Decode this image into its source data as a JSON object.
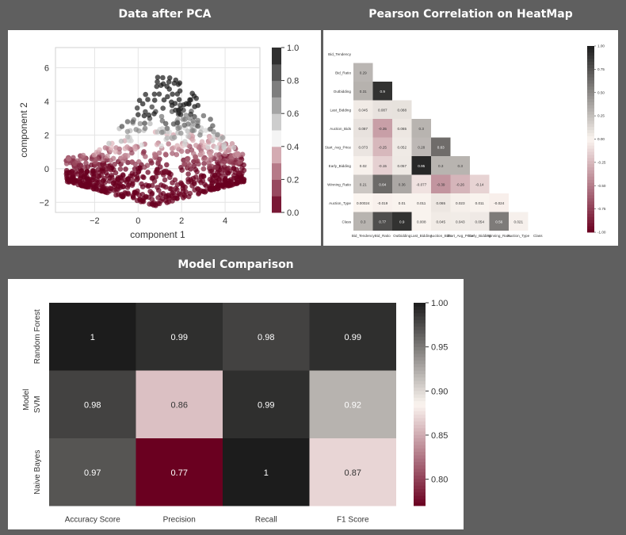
{
  "panels": {
    "pca": {
      "title": "Data after PCA"
    },
    "corr": {
      "title": "Pearson Correlation on HeatMap"
    },
    "model": {
      "title": "Model Comparison"
    }
  },
  "colors": {
    "page_bg": "#5f5f5f",
    "scale_low": "#6a0020",
    "scale_mid": "#fbf5f0",
    "scale_high": "#1c1c1c"
  },
  "chart_data": [
    {
      "type": "scatter",
      "xlabel": "component 1",
      "ylabel": "component 2",
      "xlim": [
        -3.8,
        5.6
      ],
      "ylim": [
        -2.6,
        7.2
      ],
      "xticks": [
        -2,
        0,
        2,
        4
      ],
      "yticks": [
        -2,
        0,
        2,
        4,
        6
      ],
      "grid": true,
      "colorbar": {
        "min": 0.0,
        "max": 1.0,
        "ticks": [
          "0.0",
          "0.2",
          "0.4",
          "0.6",
          "0.8",
          "1.0"
        ]
      }
    },
    {
      "type": "heatmap",
      "labels": [
        "Bid_Tendency",
        "Bid_Ratio",
        "Outbidding",
        "Last_Bidding",
        "Auction_Bids",
        "Start_Avg_Price",
        "Early_Bidding",
        "Winning_Ratio",
        "Auction_Type",
        "Class"
      ],
      "lower_triangle": [
        [],
        [
          "0.29"
        ],
        [
          "0.31",
          "0.9"
        ],
        [
          "0.045",
          "0.087",
          "0.088"
        ],
        [
          "0.087",
          "-0.35",
          "0.065",
          "0.3"
        ],
        [
          "0.073",
          "-0.25",
          "0.052",
          "0.28",
          "0.63"
        ],
        [
          "0.02",
          "-0.15",
          "0.057",
          "0.95",
          "0.3",
          "0.3"
        ],
        [
          "0.21",
          "0.64",
          "0.36",
          "-0.077",
          "-0.39",
          "-0.26",
          "-0.14"
        ],
        [
          "0.00024",
          "-0.019",
          "0.01",
          "0.011",
          "0.065",
          "0.023",
          "0.011",
          "-0.024"
        ],
        [
          "0.3",
          "0.77",
          "0.9",
          "0.008",
          "0.045",
          "0.043",
          "0.054",
          "0.56",
          "0.021"
        ]
      ],
      "colorbar": {
        "min": -1.0,
        "max": 1.0,
        "ticks": [
          "1.00",
          "0.75",
          "0.50",
          "0.25",
          "0.00",
          "-0.25",
          "-0.50",
          "-0.75",
          "-1.00"
        ]
      }
    },
    {
      "type": "heatmap",
      "ylabel": "Model",
      "rows": [
        "Random Forest",
        "SVM",
        "Naive Bayes"
      ],
      "columns": [
        "Accuracy Score",
        "Precision",
        "Recall",
        "F1 Score"
      ],
      "values": [
        [
          1,
          0.99,
          0.98,
          0.99
        ],
        [
          0.98,
          0.86,
          0.99,
          0.92
        ],
        [
          0.97,
          0.77,
          1,
          0.87
        ]
      ],
      "labels": [
        [
          "1",
          "0.99",
          "0.98",
          "0.99"
        ],
        [
          "0.98",
          "0.86",
          "0.99",
          "0.92"
        ],
        [
          "0.97",
          "0.77",
          "1",
          "0.87"
        ]
      ],
      "colorbar": {
        "min": 0.77,
        "max": 1.0,
        "ticks": [
          "1.00",
          "0.95",
          "0.90",
          "0.85",
          "0.80"
        ]
      }
    }
  ]
}
